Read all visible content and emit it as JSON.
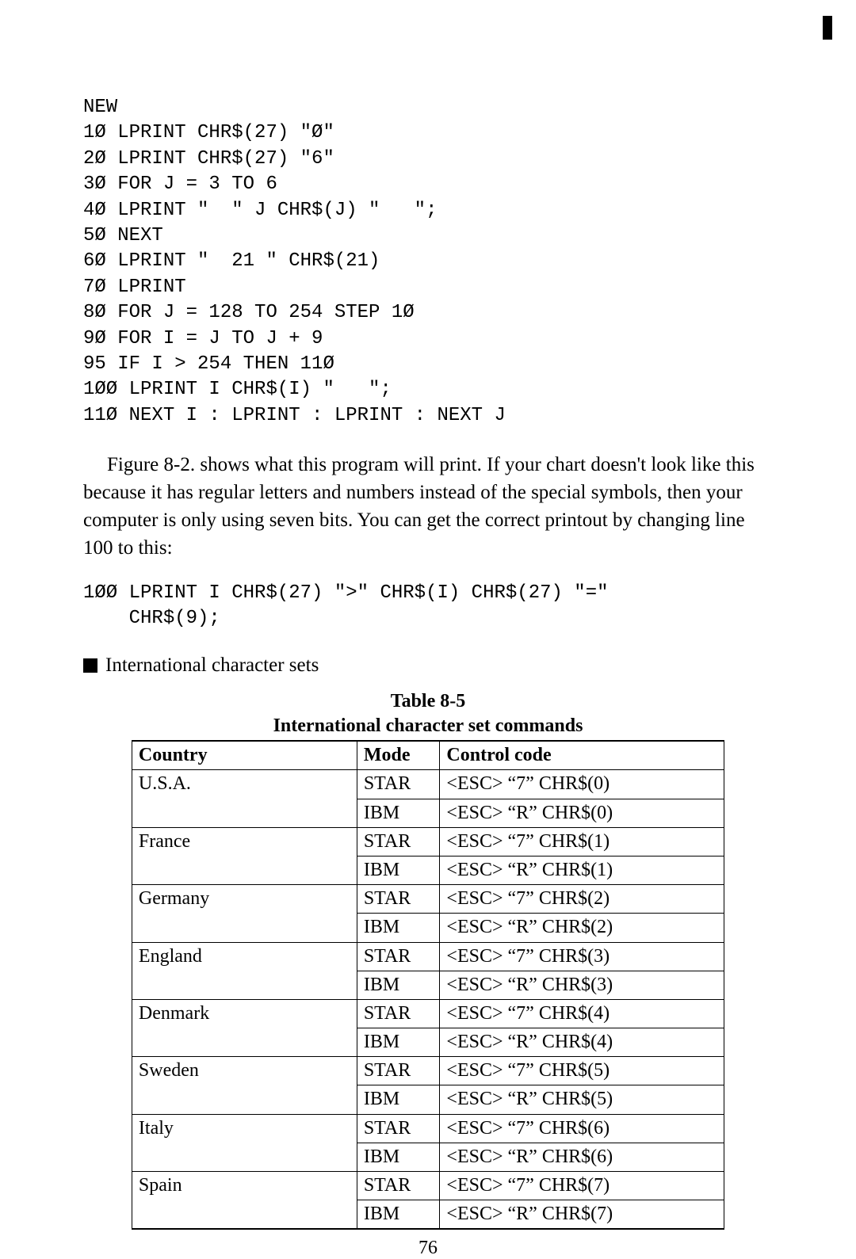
{
  "code_block_1": "NEW\n1Ø LPRINT CHR$(27) \"Ø\"\n2Ø LPRINT CHR$(27) \"6\"\n3Ø FOR J = 3 TO 6\n4Ø LPRINT \"  \" J CHR$(J) \"   \";\n5Ø NEXT\n6Ø LPRINT \"  21 \" CHR$(21)\n7Ø LPRINT\n8Ø FOR J = 128 TO 254 STEP 1Ø\n9Ø FOR I = J TO J + 9\n95 IF I > 254 THEN 11Ø\n1ØØ LPRINT I CHR$(I) \"   \";\n11Ø NEXT I : LPRINT : LPRINT : NEXT J",
  "paragraph_1": "Figure 8-2. shows what this program will print. If your chart doesn't look like this because it has regular letters and numbers instead of the special symbols, then your computer is only using seven bits. You can get the correct printout by changing line 100 to this:",
  "code_block_2": "1ØØ LPRINT I CHR$(27) \">\" CHR$(I) CHR$(27) \"=\"\n    CHR$(9);",
  "section_header": "International character sets",
  "table": {
    "title": "Table 8-5",
    "subtitle": "International character set commands",
    "columns": [
      "Country",
      "Mode",
      "Control code"
    ],
    "rows": [
      {
        "country": "U.S.A.",
        "modes": [
          {
            "mode": "STAR",
            "code": "<ESC> “7” CHR$(0)"
          },
          {
            "mode": "IBM",
            "code": "<ESC> “R” CHR$(0)"
          }
        ]
      },
      {
        "country": "France",
        "modes": [
          {
            "mode": "STAR",
            "code": "<ESC> “7” CHR$(1)"
          },
          {
            "mode": "IBM",
            "code": "<ESC> “R” CHR$(1)"
          }
        ]
      },
      {
        "country": "Germany",
        "modes": [
          {
            "mode": "STAR",
            "code": "<ESC> “7” CHR$(2)"
          },
          {
            "mode": "IBM",
            "code": "<ESC> “R” CHR$(2)"
          }
        ]
      },
      {
        "country": "England",
        "modes": [
          {
            "mode": "STAR",
            "code": "<ESC> “7” CHR$(3)"
          },
          {
            "mode": "IBM",
            "code": "<ESC> “R” CHR$(3)"
          }
        ]
      },
      {
        "country": "Denmark",
        "modes": [
          {
            "mode": "STAR",
            "code": "<ESC> “7” CHR$(4)"
          },
          {
            "mode": "IBM",
            "code": "<ESC> “R” CHR$(4)"
          }
        ]
      },
      {
        "country": "Sweden",
        "modes": [
          {
            "mode": "STAR",
            "code": "<ESC> “7” CHR$(5)"
          },
          {
            "mode": "IBM",
            "code": "<ESC> “R” CHR$(5)"
          }
        ]
      },
      {
        "country": "Italy",
        "modes": [
          {
            "mode": "STAR",
            "code": "<ESC> “7” CHR$(6)"
          },
          {
            "mode": "IBM",
            "code": "<ESC> “R” CHR$(6)"
          }
        ]
      },
      {
        "country": "Spain",
        "modes": [
          {
            "mode": "STAR",
            "code": "<ESC> “7” CHR$(7)"
          },
          {
            "mode": "IBM",
            "code": "<ESC> “R” CHR$(7)"
          }
        ]
      }
    ]
  },
  "page_number": "76"
}
